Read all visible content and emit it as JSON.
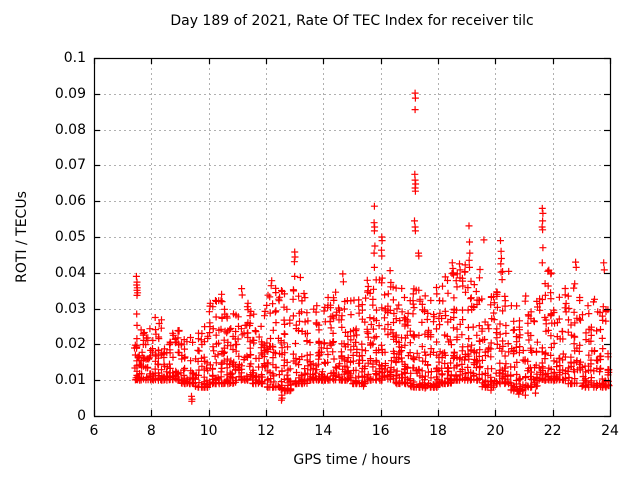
{
  "title": "Day 189 of 2021, Rate Of TEC Index for receiver tilc",
  "chart_data": {
    "type": "scatter",
    "title": "Day 189 of 2021, Rate Of TEC Index for receiver tilc",
    "xlabel": "GPS time / hours",
    "ylabel": "ROTI / TECUs",
    "xlim": [
      6,
      24
    ],
    "ylim": [
      0,
      0.1
    ],
    "x_tick_values": [
      6,
      8,
      10,
      12,
      14,
      16,
      18,
      20,
      22,
      24
    ],
    "x_tick_labels": [
      "6",
      "8",
      "10",
      "12",
      "14",
      "16",
      "18",
      "20",
      "22",
      "24"
    ],
    "y_tick_values": [
      0,
      0.01,
      0.02,
      0.03,
      0.04,
      0.05,
      0.06,
      0.07,
      0.08,
      0.09,
      0.1
    ],
    "y_tick_labels": [
      "0",
      "0.01",
      "0.02",
      "0.03",
      "0.04",
      "0.05",
      "0.06",
      "0.07",
      "0.08",
      "0.09",
      "0.1"
    ],
    "grid": true,
    "legend": "none",
    "marker": "plus",
    "marker_color": "#ff0000",
    "grid_color": "#b0b0b0",
    "axis_color": "#000000",
    "background_color": "#ffffff",
    "data_note": "Dense band of ~2000 red '+' points from ~7.4h to 24h, mostly 0.01-0.03 TECU; represented by distribution_bins [x_start,x_end,count,y_min,y_max] plus explicit outlier_points [x,y] read off the chart.",
    "seed": 20210189,
    "skew": 2.6,
    "columns_per_bin": 5,
    "distribution_bins": [
      [
        7.4,
        7.62,
        28,
        0.01,
        0.022
      ],
      [
        7.62,
        8.0,
        40,
        0.01,
        0.025
      ],
      [
        8.0,
        8.5,
        55,
        0.01,
        0.028
      ],
      [
        8.5,
        9.0,
        55,
        0.01,
        0.024
      ],
      [
        9.0,
        9.5,
        52,
        0.009,
        0.023
      ],
      [
        9.5,
        10.0,
        50,
        0.008,
        0.026
      ],
      [
        10.0,
        10.5,
        58,
        0.009,
        0.033
      ],
      [
        10.5,
        11.0,
        58,
        0.009,
        0.03
      ],
      [
        11.0,
        11.5,
        58,
        0.01,
        0.035
      ],
      [
        11.5,
        12.0,
        58,
        0.009,
        0.031
      ],
      [
        12.0,
        12.5,
        60,
        0.008,
        0.036
      ],
      [
        12.5,
        13.0,
        60,
        0.007,
        0.037
      ],
      [
        13.0,
        13.5,
        60,
        0.009,
        0.035
      ],
      [
        13.5,
        14.0,
        55,
        0.01,
        0.032
      ],
      [
        14.0,
        14.5,
        60,
        0.01,
        0.036
      ],
      [
        14.5,
        15.0,
        60,
        0.01,
        0.035
      ],
      [
        15.0,
        15.5,
        58,
        0.009,
        0.034
      ],
      [
        15.5,
        16.0,
        60,
        0.01,
        0.039
      ],
      [
        16.0,
        16.5,
        64,
        0.01,
        0.041
      ],
      [
        16.5,
        17.0,
        64,
        0.009,
        0.037
      ],
      [
        17.0,
        17.5,
        64,
        0.008,
        0.039
      ],
      [
        17.5,
        18.0,
        62,
        0.008,
        0.036
      ],
      [
        18.0,
        18.5,
        64,
        0.009,
        0.039
      ],
      [
        18.5,
        19.0,
        64,
        0.01,
        0.042
      ],
      [
        19.0,
        19.5,
        64,
        0.01,
        0.041
      ],
      [
        19.5,
        20.0,
        58,
        0.008,
        0.034
      ],
      [
        20.0,
        20.5,
        60,
        0.009,
        0.041
      ],
      [
        20.5,
        21.0,
        58,
        0.007,
        0.037
      ],
      [
        21.0,
        21.5,
        58,
        0.008,
        0.035
      ],
      [
        21.5,
        22.0,
        60,
        0.01,
        0.044
      ],
      [
        22.0,
        22.5,
        54,
        0.01,
        0.036
      ],
      [
        22.5,
        23.0,
        50,
        0.009,
        0.038
      ],
      [
        23.0,
        23.5,
        48,
        0.008,
        0.034
      ],
      [
        23.5,
        24.0,
        54,
        0.008,
        0.032
      ]
    ],
    "outlier_points": [
      [
        7.48,
        0.039
      ],
      [
        7.5,
        0.0374
      ],
      [
        7.49,
        0.0366
      ],
      [
        7.51,
        0.0358
      ],
      [
        7.5,
        0.0351
      ],
      [
        7.52,
        0.0344
      ],
      [
        7.5,
        0.0337
      ],
      [
        7.49,
        0.0285
      ],
      [
        7.5,
        0.0253
      ],
      [
        9.4,
        0.0055
      ],
      [
        9.42,
        0.0047
      ],
      [
        9.41,
        0.0041
      ],
      [
        10.45,
        0.034
      ],
      [
        10.43,
        0.0322
      ],
      [
        11.15,
        0.0356
      ],
      [
        11.17,
        0.0338
      ],
      [
        12.2,
        0.0378
      ],
      [
        12.18,
        0.0364
      ],
      [
        12.55,
        0.0058
      ],
      [
        12.56,
        0.005
      ],
      [
        12.54,
        0.0044
      ],
      [
        13.0,
        0.0458
      ],
      [
        13.01,
        0.0444
      ],
      [
        12.99,
        0.0431
      ],
      [
        13.0,
        0.039
      ],
      [
        13.2,
        0.0387
      ],
      [
        14.68,
        0.0397
      ],
      [
        14.7,
        0.0375
      ],
      [
        15.4,
        0.0083
      ],
      [
        15.78,
        0.0586
      ],
      [
        15.77,
        0.054
      ],
      [
        15.79,
        0.0528
      ],
      [
        15.78,
        0.0517
      ],
      [
        15.8,
        0.0475
      ],
      [
        15.77,
        0.0455
      ],
      [
        15.78,
        0.0415
      ],
      [
        16.04,
        0.05
      ],
      [
        16.05,
        0.049
      ],
      [
        16.03,
        0.0463
      ],
      [
        16.04,
        0.0447
      ],
      [
        17.2,
        0.0902
      ],
      [
        17.21,
        0.0888
      ],
      [
        17.2,
        0.0856
      ],
      [
        17.19,
        0.0675
      ],
      [
        17.2,
        0.0659
      ],
      [
        17.22,
        0.0648
      ],
      [
        17.2,
        0.0637
      ],
      [
        17.21,
        0.0628
      ],
      [
        17.18,
        0.0545
      ],
      [
        17.2,
        0.0528
      ],
      [
        17.21,
        0.0517
      ],
      [
        17.32,
        0.0455
      ],
      [
        17.33,
        0.0447
      ],
      [
        17.55,
        0.0078
      ],
      [
        18.5,
        0.0428
      ],
      [
        18.52,
        0.0412
      ],
      [
        18.49,
        0.0398
      ],
      [
        18.75,
        0.0425
      ],
      [
        18.77,
        0.0408
      ],
      [
        18.95,
        0.0422
      ],
      [
        18.93,
        0.0402
      ],
      [
        19.08,
        0.0531
      ],
      [
        19.1,
        0.0486
      ],
      [
        19.11,
        0.0455
      ],
      [
        19.09,
        0.0435
      ],
      [
        19.1,
        0.0415
      ],
      [
        19.6,
        0.0492
      ],
      [
        19.85,
        0.0072
      ],
      [
        20.18,
        0.049
      ],
      [
        20.2,
        0.046
      ],
      [
        20.21,
        0.044
      ],
      [
        20.19,
        0.0425
      ],
      [
        20.2,
        0.0402
      ],
      [
        20.8,
        0.0069
      ],
      [
        20.82,
        0.0061
      ],
      [
        21.05,
        0.0058
      ],
      [
        21.4,
        0.0064
      ],
      [
        21.64,
        0.058
      ],
      [
        21.66,
        0.0566
      ],
      [
        21.65,
        0.0545
      ],
      [
        21.63,
        0.0528
      ],
      [
        21.65,
        0.052
      ],
      [
        21.66,
        0.047
      ],
      [
        21.64,
        0.0428
      ],
      [
        22.8,
        0.043
      ],
      [
        22.82,
        0.0415
      ],
      [
        23.78,
        0.0428
      ],
      [
        23.8,
        0.0408
      ]
    ]
  }
}
